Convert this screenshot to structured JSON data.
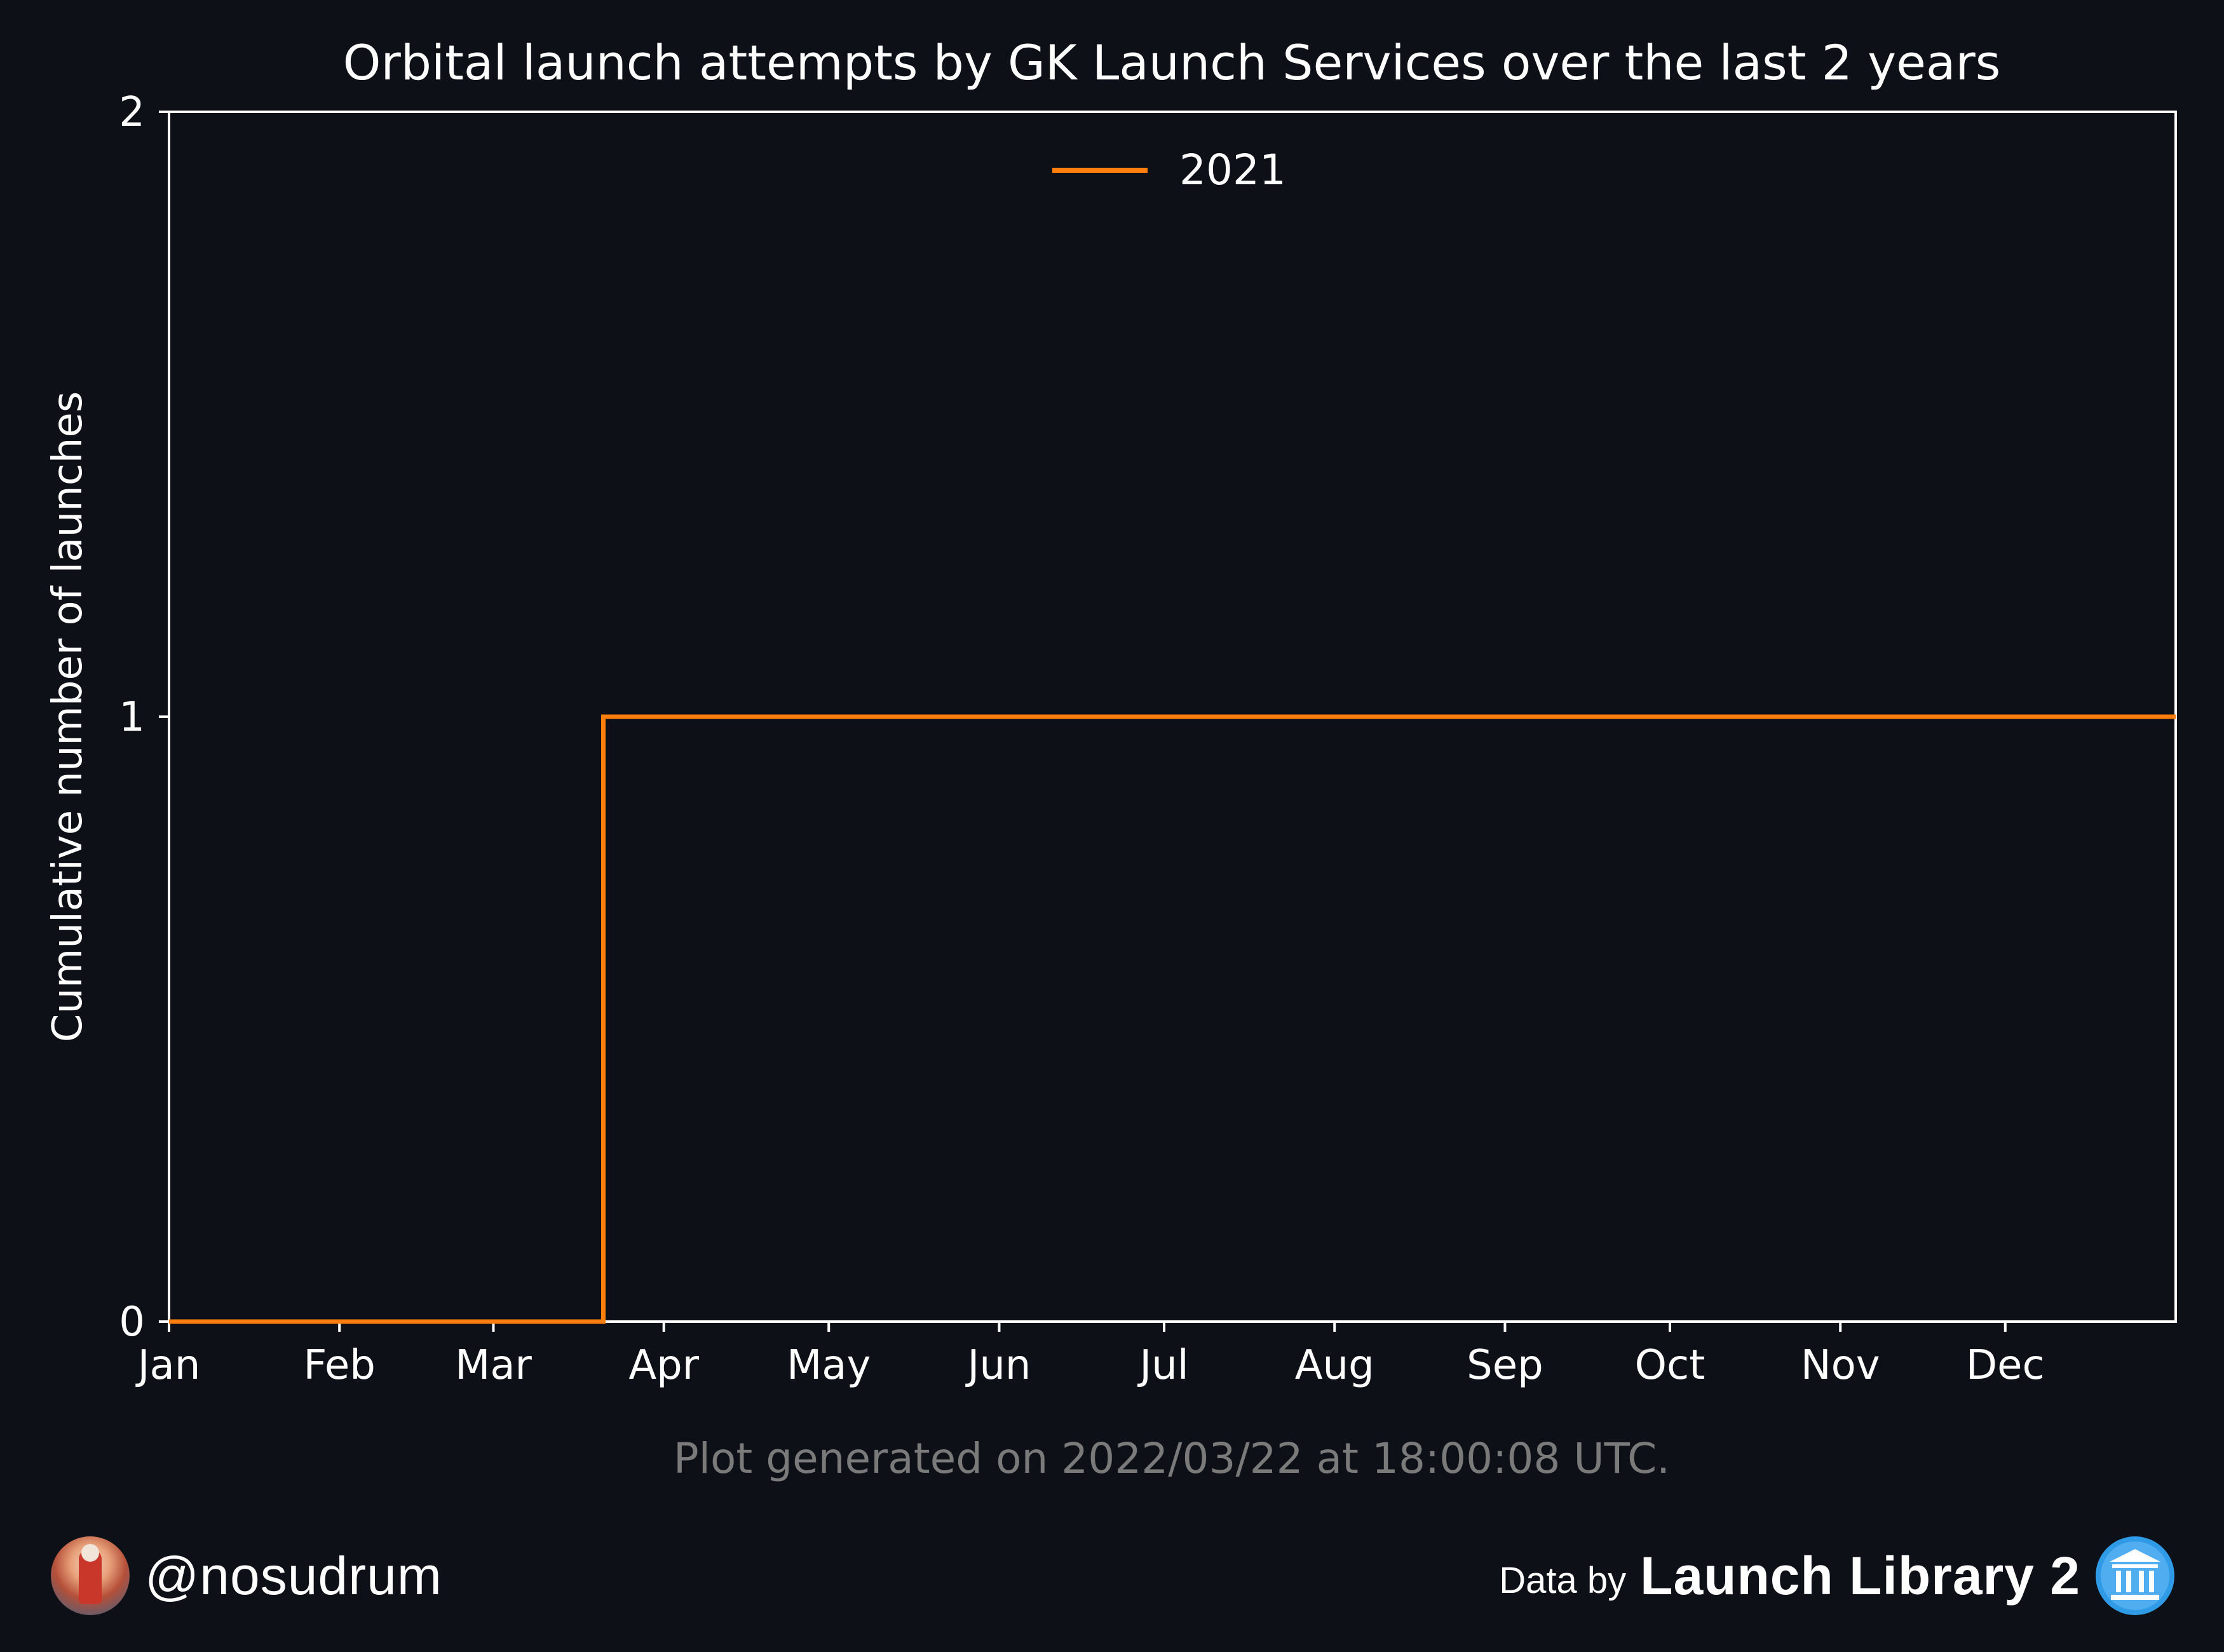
{
  "chart_data": {
    "type": "line",
    "step": true,
    "title": "Orbital launch attempts by GK Launch Services over the last 2 years",
    "xlabel": "",
    "ylabel": "Cumulative number of launches",
    "x_ticks": [
      "Jan",
      "Feb",
      "Mar",
      "Apr",
      "May",
      "Jun",
      "Jul",
      "Aug",
      "Sep",
      "Oct",
      "Nov",
      "Dec"
    ],
    "x_tick_days": [
      0,
      31,
      59,
      90,
      120,
      151,
      181,
      212,
      243,
      273,
      304,
      334
    ],
    "xlim_days": [
      0,
      365
    ],
    "y_ticks": [
      "0",
      "1",
      "2"
    ],
    "ylim": [
      0,
      2
    ],
    "grid": false,
    "legend_placement": "upper center",
    "series": [
      {
        "name": "2021",
        "color": "#ff7f0e",
        "points": [
          {
            "day": 0,
            "value": 0
          },
          {
            "day": 79,
            "value": 0
          },
          {
            "day": 79,
            "value": 1
          },
          {
            "day": 365,
            "value": 1
          }
        ]
      }
    ],
    "annotation": "Plot generated on 2022/03/22 at 18:00:08 UTC."
  },
  "footer": {
    "handle": "@nosudrum",
    "data_by": "Data by",
    "source": "Launch Library 2"
  },
  "colors": {
    "background": "#0d1017",
    "axes": "#ffffff",
    "annotation": "#7a7a7a",
    "series": "#ff7f0e",
    "logo": "#2f9ae6"
  }
}
